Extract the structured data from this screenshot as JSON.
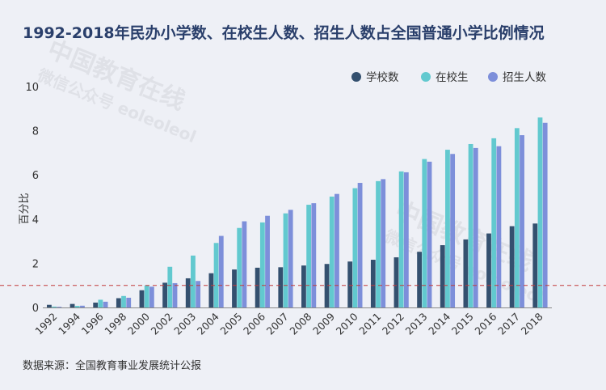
{
  "source": "数据来源：全国教育事业发展统计公报",
  "watermark": {
    "line1": "中国教育在线",
    "line2": "微信公众号 eoleoleol"
  },
  "colors": {
    "school": "#34506f",
    "enrolled": "#62c9cf",
    "newStudents": "#7d8fda",
    "refLine": "#c23b3b",
    "axis": "#555555"
  },
  "chart_data": {
    "type": "bar",
    "title": "1992-2018年民办小学数、在校生人数、招生人数占全国普通小学比例情况",
    "ylabel": "百分比",
    "xlabel": "",
    "ylim": [
      0,
      10
    ],
    "yticks": [
      0,
      2,
      4,
      6,
      8,
      10
    ],
    "grid": false,
    "legend_position": "top-right",
    "reference_line": 1,
    "categories": [
      "1992",
      "1994",
      "1996",
      "1998",
      "2000",
      "2002",
      "2003",
      "2004",
      "2005",
      "2006",
      "2007",
      "2008",
      "2009",
      "2010",
      "2011",
      "2012",
      "2013",
      "2014",
      "2015",
      "2016",
      "2017",
      "2018"
    ],
    "series": [
      {
        "name": "学校数",
        "values": [
          0.12,
          0.16,
          0.22,
          0.42,
          0.78,
          1.12,
          1.32,
          1.55,
          1.72,
          1.8,
          1.82,
          1.9,
          1.97,
          2.08,
          2.16,
          2.27,
          2.52,
          2.82,
          3.08,
          3.35,
          3.68,
          3.8
        ]
      },
      {
        "name": "在校生",
        "values": [
          0.04,
          0.07,
          0.35,
          0.52,
          1.0,
          1.84,
          2.35,
          2.92,
          3.6,
          3.85,
          4.26,
          4.65,
          5.02,
          5.4,
          5.72,
          6.16,
          6.72,
          7.14,
          7.4,
          7.66,
          8.12,
          8.6
        ]
      },
      {
        "name": "招生人数",
        "values": [
          0.03,
          0.08,
          0.26,
          0.44,
          0.94,
          1.1,
          1.2,
          3.24,
          3.9,
          4.15,
          4.42,
          4.72,
          5.14,
          5.64,
          5.81,
          6.12,
          6.6,
          6.95,
          7.22,
          7.3,
          7.8,
          8.36
        ]
      }
    ]
  }
}
